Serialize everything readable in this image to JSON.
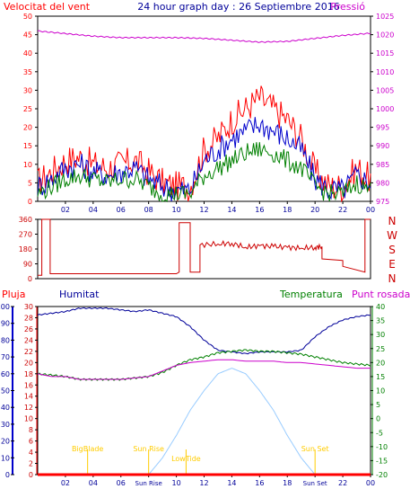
{
  "chart_data": [
    {
      "type": "line",
      "title": "24 hour graph day : 26 Septiembre 2016",
      "left_label": "Velocitat del vent",
      "right_label": "Pressió",
      "x_ticks": [
        "02",
        "04",
        "06",
        "08",
        "10",
        "12",
        "14",
        "16",
        "18",
        "20",
        "22",
        "00"
      ],
      "y_left_ticks": [
        "0",
        "5",
        "10",
        "15",
        "20",
        "25",
        "30",
        "35",
        "40",
        "45",
        "50"
      ],
      "y_right_ticks": [
        "975",
        "980",
        "985",
        "990",
        "995",
        "1000",
        "1005",
        "1010",
        "1015",
        "1020",
        "1025"
      ],
      "ylim_left": [
        0,
        50
      ],
      "ylim_right": [
        975,
        1025
      ],
      "series": [
        {
          "color": "#ff0000",
          "axis": "left",
          "x": [
            0,
            1,
            2,
            3,
            4,
            5,
            6,
            7,
            8,
            9,
            10,
            11,
            12,
            13,
            14,
            15,
            16,
            17,
            18,
            19,
            20,
            21,
            22,
            23,
            24
          ],
          "y": [
            5,
            8,
            11,
            12,
            10,
            9,
            10,
            11,
            8,
            5,
            4,
            4,
            14,
            17,
            22,
            25,
            28,
            25,
            22,
            17,
            8,
            4,
            4,
            9,
            6
          ]
        },
        {
          "color": "#0000cc",
          "axis": "left",
          "x": [
            0,
            1,
            2,
            3,
            4,
            5,
            6,
            7,
            8,
            9,
            10,
            11,
            12,
            13,
            14,
            15,
            16,
            17,
            18,
            19,
            20,
            21,
            22,
            23,
            24
          ],
          "y": [
            4,
            6,
            9,
            10,
            8,
            7,
            8,
            9,
            6,
            4,
            3,
            3,
            11,
            14,
            17,
            19,
            21,
            19,
            17,
            14,
            6,
            3,
            3,
            7,
            5
          ]
        },
        {
          "color": "#008000",
          "axis": "left",
          "x": [
            0,
            1,
            2,
            3,
            4,
            5,
            6,
            7,
            8,
            9,
            10,
            11,
            12,
            13,
            14,
            15,
            16,
            17,
            18,
            19,
            20,
            21,
            22,
            23,
            24
          ],
          "y": [
            2,
            4,
            6,
            7,
            6,
            5,
            6,
            6,
            4,
            2,
            2,
            2,
            7,
            9,
            11,
            13,
            14,
            13,
            11,
            9,
            4,
            2,
            2,
            5,
            3
          ]
        },
        {
          "color": "#cc00cc",
          "axis": "right",
          "x": [
            0,
            2,
            4,
            6,
            8,
            10,
            12,
            14,
            16,
            18,
            20,
            22,
            24
          ],
          "y": [
            1021,
            1020.3,
            1019.6,
            1019.2,
            1019.2,
            1019.2,
            1019,
            1018.5,
            1018,
            1018.2,
            1019,
            1019.8,
            1020.4
          ]
        }
      ]
    },
    {
      "type": "line",
      "right_label_letters": [
        "N",
        "W",
        "S",
        "E",
        "N"
      ],
      "y_left_ticks": [
        "0",
        "90",
        "180",
        "270",
        "360"
      ],
      "ylim_left": [
        0,
        360
      ],
      "series": [
        {
          "color": "#cc0000",
          "x": [
            0,
            0.3,
            0.3,
            0.9,
            0.9,
            2,
            4,
            6,
            8,
            9.5,
            10,
            10.2,
            10.2,
            11,
            11,
            11.7,
            11.7,
            13,
            14,
            15,
            16,
            17,
            18,
            19,
            20,
            20.5,
            20.5,
            22,
            22,
            23.6,
            23.6,
            24
          ],
          "y": [
            20,
            20,
            360,
            360,
            30,
            30,
            30,
            30,
            30,
            30,
            30,
            40,
            340,
            340,
            40,
            40,
            205,
            210,
            215,
            190,
            200,
            195,
            190,
            185,
            190,
            195,
            120,
            110,
            75,
            40,
            360,
            360
          ]
        }
      ]
    },
    {
      "type": "line",
      "left_label": "Pluja",
      "humidity_label": "Humitat",
      "temperature_label": "Temperatura",
      "dew_point_label": "Punt rosada",
      "x_ticks": [
        "02",
        "04",
        "06",
        "08",
        "10",
        "12",
        "14",
        "16",
        "18",
        "20",
        "22",
        "00"
      ],
      "y_humidity_ticks": [
        "0",
        "10",
        "20",
        "30",
        "40",
        "50",
        "60",
        "70",
        "80",
        "90",
        "100"
      ],
      "y_rain_ticks": [
        "0",
        "2",
        "4",
        "6",
        "8",
        "10",
        "12",
        "14",
        "16",
        "18",
        "20",
        "22",
        "24",
        "26",
        "28",
        "30"
      ],
      "y_temperature_ticks": [
        "-20",
        "-15",
        "-10",
        "-5",
        "0",
        "5",
        "10",
        "15",
        "20",
        "25",
        "30",
        "35",
        "40"
      ],
      "ylim_humidity": [
        0,
        100
      ],
      "ylim_rain": [
        0,
        30
      ],
      "ylim_temperature": [
        -20,
        40
      ],
      "annotations": [
        {
          "text": "BigBlade",
          "x": 3.6
        },
        {
          "text": "Sun Rise",
          "x": 8
        },
        {
          "text": "LowTide",
          "x": 10.7
        },
        {
          "text": "Sun Set",
          "x": 20
        }
      ],
      "x_special_labels": [
        {
          "text": "Sun Rise",
          "x": 8
        },
        {
          "text": "Sun Set",
          "x": 20
        }
      ],
      "series": [
        {
          "color": "#000099",
          "scale": "humidity",
          "x": [
            0,
            1,
            2,
            3,
            4,
            5,
            6,
            7,
            8,
            9,
            10,
            11,
            12,
            13,
            14,
            15,
            16,
            17,
            18,
            19,
            20,
            21,
            22,
            23,
            24
          ],
          "y": [
            95,
            96,
            97,
            99,
            99,
            99,
            98,
            97,
            98,
            96,
            94,
            88,
            80,
            74,
            73,
            72,
            73,
            73,
            73,
            74,
            82,
            88,
            92,
            94,
            95
          ]
        },
        {
          "color": "#008000",
          "scale": "temperature",
          "x": [
            0,
            1,
            2,
            3,
            4,
            5,
            6,
            7,
            8,
            9,
            10,
            11,
            12,
            13,
            14,
            15,
            16,
            17,
            18,
            19,
            20,
            21,
            22,
            23,
            24
          ],
          "y": [
            16,
            15.5,
            15,
            14,
            14,
            14,
            14,
            14.5,
            15,
            16.5,
            19,
            21,
            22,
            23.5,
            24,
            24.5,
            24,
            24,
            23.5,
            23,
            22,
            21,
            20,
            19.5,
            19
          ]
        },
        {
          "color": "#cc00cc",
          "scale": "temperature",
          "x": [
            0,
            1,
            2,
            3,
            4,
            5,
            6,
            7,
            8,
            9,
            10,
            11,
            12,
            13,
            14,
            15,
            16,
            17,
            18,
            19,
            20,
            21,
            22,
            23,
            24
          ],
          "y": [
            16,
            15,
            15,
            14,
            14,
            14,
            14,
            14.5,
            15,
            17,
            19,
            20,
            20.5,
            21,
            21,
            20.5,
            20.5,
            20.5,
            20,
            20,
            19.5,
            19,
            18.5,
            18,
            18
          ]
        },
        {
          "color": "#99ccff",
          "scale": "temperature",
          "x": [
            8,
            9,
            10,
            11,
            12,
            13,
            14,
            15,
            16,
            17,
            18,
            19,
            20
          ],
          "y": [
            -20,
            -14,
            -6,
            3,
            10,
            16,
            18,
            16,
            10,
            3,
            -6,
            -14,
            -20
          ]
        },
        {
          "color": "#ff0000",
          "scale": "rain",
          "x": [
            0,
            24
          ],
          "y": [
            0,
            0
          ]
        }
      ]
    }
  ]
}
